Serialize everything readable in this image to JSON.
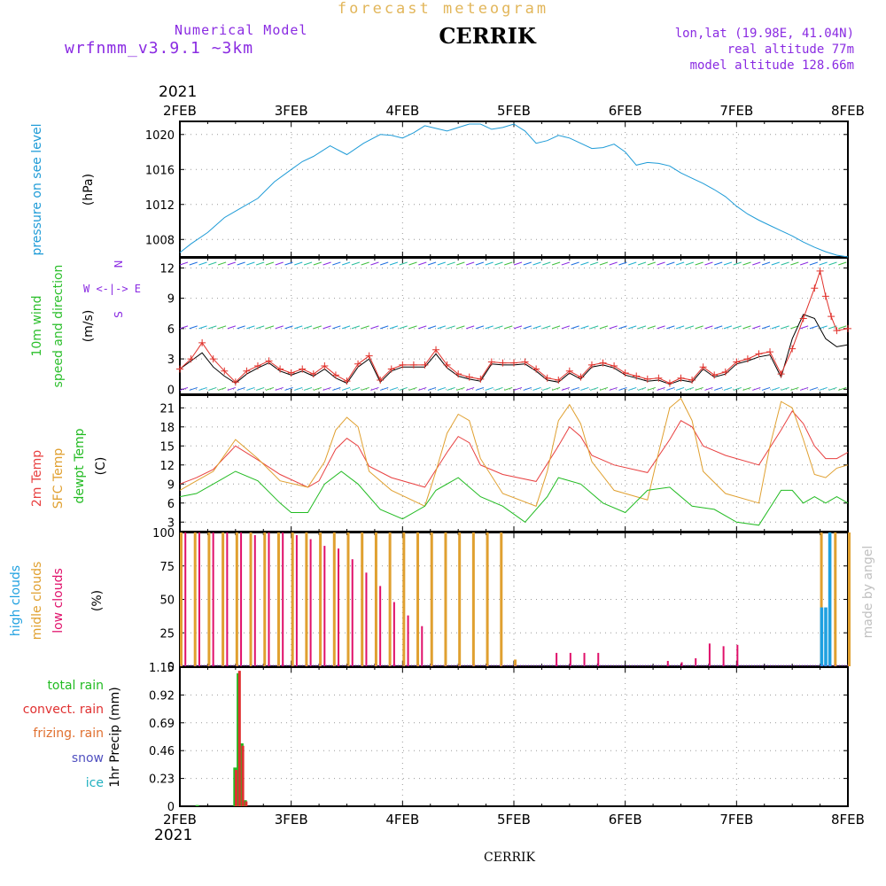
{
  "header": {
    "title": "forecast meteogram",
    "station": "CERRIK",
    "model_line1": "Numerical Model",
    "model_line2": "wrfnmm_v3.9.1   ~3km",
    "lonlat": "lon,lat (19.98E, 41.04N)",
    "real_altitude": "real altitude 77m",
    "model_altitude": "model altitude  128.66m"
  },
  "year_top": "2021",
  "year_bottom": "2021",
  "footer_station": "CERRIK",
  "watermark": "made by angel",
  "time_axis": {
    "top_labels": [
      "2FEB",
      "3FEB",
      "4FEB",
      "5FEB",
      "6FEB",
      "7FEB",
      "8FEB"
    ],
    "bottom_labels": [
      "2FEB",
      "3FEB",
      "4FEB",
      "5FEB",
      "6FEB",
      "7FEB",
      "8FEB"
    ]
  },
  "colors": {
    "pressure": "#1e9bd7",
    "wind_label": "#2cbf2c",
    "wind_speed": "#e0302a",
    "wind_gust": "#000000",
    "temp2m": "#e84040",
    "sfc": "#e0a030",
    "dewpt": "#22bb22",
    "high_clouds": "#1ea0e0",
    "mid_clouds": "#e0a030",
    "low_clouds": "#e0106a",
    "total_rain": "#22bb22",
    "convect_rain": "#e03030",
    "freezing_rain": "#e07030",
    "snow": "#5050c0",
    "ice": "#20b0c0",
    "axis_text": "#000000",
    "grid": "#999999"
  },
  "chart_data": [
    {
      "id": "pressure",
      "type": "line",
      "ylabel": "pressure on see level",
      "unit": "(hPa)",
      "yticks": [
        1008,
        1012,
        1016,
        1020
      ],
      "ylim": [
        1006,
        1021.5
      ],
      "x_days": [
        0,
        0.1,
        0.25,
        0.4,
        0.55,
        0.7,
        0.85,
        1.0,
        1.1,
        1.2,
        1.35,
        1.5,
        1.65,
        1.8,
        1.9,
        2.0,
        2.1,
        2.2,
        2.3,
        2.4,
        2.5,
        2.6,
        2.7,
        2.8,
        2.9,
        3.0,
        3.1,
        3.2,
        3.3,
        3.4,
        3.5,
        3.6,
        3.7,
        3.8,
        3.9,
        4.0,
        4.1,
        4.2,
        4.3,
        4.4,
        4.5,
        4.6,
        4.7,
        4.8,
        4.9,
        5.0,
        5.1,
        5.2,
        5.3,
        5.4,
        5.5,
        5.6,
        5.7,
        5.8,
        5.9,
        6.0
      ],
      "values": [
        1006.5,
        1007.5,
        1008.8,
        1010.5,
        1011.6,
        1012.7,
        1014.6,
        1016.0,
        1016.9,
        1017.5,
        1018.7,
        1017.7,
        1019.0,
        1020.0,
        1019.9,
        1019.6,
        1020.2,
        1021.0,
        1020.7,
        1020.4,
        1020.8,
        1021.2,
        1021.2,
        1020.6,
        1020.8,
        1021.2,
        1020.4,
        1019.0,
        1019.3,
        1019.9,
        1019.6,
        1019.0,
        1018.4,
        1018.5,
        1018.9,
        1018.0,
        1016.5,
        1016.8,
        1016.7,
        1016.4,
        1015.6,
        1015.0,
        1014.4,
        1013.7,
        1012.9,
        1011.8,
        1010.9,
        1010.2,
        1009.6,
        1009.0,
        1008.4,
        1007.7,
        1007.1,
        1006.6,
        1006.2,
        1006.0
      ]
    },
    {
      "id": "wind",
      "type": "line",
      "ylabel_lines": [
        "10m wind",
        "speed and direction"
      ],
      "unit": "(m/s)",
      "direction_legend": [
        "N",
        "W <-|-> E",
        "S"
      ],
      "yticks": [
        0,
        3,
        6,
        9,
        12
      ],
      "ylim": [
        -0.5,
        13
      ],
      "x_days": [
        0,
        0.1,
        0.2,
        0.3,
        0.4,
        0.5,
        0.6,
        0.7,
        0.8,
        0.9,
        1.0,
        1.1,
        1.2,
        1.3,
        1.4,
        1.5,
        1.6,
        1.7,
        1.8,
        1.9,
        2.0,
        2.1,
        2.2,
        2.3,
        2.4,
        2.5,
        2.6,
        2.7,
        2.8,
        2.9,
        3.0,
        3.1,
        3.2,
        3.3,
        3.4,
        3.5,
        3.6,
        3.7,
        3.8,
        3.9,
        4.0,
        4.1,
        4.2,
        4.3,
        4.4,
        4.5,
        4.6,
        4.7,
        4.8,
        4.9,
        5.0,
        5.1,
        5.2,
        5.3,
        5.4,
        5.5,
        5.6,
        5.7,
        5.75,
        5.8,
        5.85,
        5.9,
        6.0
      ],
      "speed": [
        2.0,
        3.0,
        4.6,
        3.0,
        1.8,
        0.7,
        1.8,
        2.3,
        2.8,
        2.0,
        1.6,
        2.0,
        1.5,
        2.3,
        1.4,
        0.8,
        2.5,
        3.3,
        0.9,
        2.0,
        2.4,
        2.4,
        2.4,
        3.9,
        2.4,
        1.5,
        1.2,
        1.0,
        2.7,
        2.6,
        2.6,
        2.7,
        2.0,
        1.1,
        0.9,
        1.8,
        1.2,
        2.4,
        2.6,
        2.3,
        1.6,
        1.3,
        1.0,
        1.1,
        0.6,
        1.1,
        0.9,
        2.2,
        1.4,
        1.7,
        2.7,
        3.0,
        3.5,
        3.7,
        1.5,
        4.0,
        7.0,
        10.0,
        11.7,
        9.2,
        7.2,
        5.8,
        6.0
      ],
      "gust": [
        2.0,
        2.8,
        3.6,
        2.2,
        1.3,
        0.6,
        1.5,
        2.1,
        2.6,
        1.8,
        1.4,
        1.8,
        1.3,
        2.0,
        1.1,
        0.6,
        2.2,
        3.0,
        0.7,
        1.8,
        2.2,
        2.2,
        2.2,
        3.5,
        2.1,
        1.3,
        1.0,
        0.8,
        2.5,
        2.4,
        2.4,
        2.5,
        1.8,
        0.9,
        0.7,
        1.6,
        1.0,
        2.2,
        2.4,
        2.1,
        1.4,
        1.1,
        0.8,
        0.9,
        0.5,
        0.9,
        0.7,
        2.0,
        1.2,
        1.5,
        2.5,
        2.8,
        3.2,
        3.4,
        1.2,
        5.0,
        7.4,
        7.0,
        6.0,
        5.0,
        4.6,
        4.2,
        4.4
      ]
    },
    {
      "id": "temperature",
      "type": "line",
      "ylabel_lines": [
        "2m Temp",
        "SFC Temp",
        "dewpt Temp"
      ],
      "unit": "(C)",
      "yticks": [
        3,
        6,
        9,
        12,
        15,
        18,
        21
      ],
      "ylim": [
        1.5,
        23
      ],
      "series": [
        {
          "name": "2m Temp",
          "x_days": [
            0,
            0.15,
            0.3,
            0.5,
            0.7,
            0.9,
            1.15,
            1.25,
            1.4,
            1.5,
            1.6,
            1.7,
            1.9,
            2.2,
            2.4,
            2.5,
            2.6,
            2.7,
            2.9,
            3.2,
            3.4,
            3.5,
            3.6,
            3.7,
            3.9,
            4.2,
            4.4,
            4.5,
            4.6,
            4.7,
            4.9,
            5.2,
            5.4,
            5.5,
            5.6,
            5.7,
            5.8,
            5.9,
            6.0
          ],
          "values": [
            9.0,
            10.0,
            11.3,
            15.0,
            12.8,
            10.5,
            8.5,
            9.5,
            14.5,
            16.2,
            15.0,
            11.8,
            10.0,
            8.5,
            14.0,
            16.5,
            15.5,
            12.0,
            10.5,
            9.4,
            15.0,
            18.0,
            16.5,
            13.5,
            12.0,
            10.8,
            16.0,
            19.0,
            18.0,
            15.0,
            13.5,
            12.0,
            17.5,
            20.5,
            18.5,
            15.0,
            13.0,
            13.0,
            14.0
          ]
        },
        {
          "name": "SFC Temp",
          "x_days": [
            0,
            0.15,
            0.3,
            0.5,
            0.7,
            0.9,
            1.15,
            1.3,
            1.4,
            1.5,
            1.6,
            1.7,
            1.9,
            2.2,
            2.3,
            2.4,
            2.5,
            2.6,
            2.7,
            2.9,
            3.2,
            3.3,
            3.4,
            3.5,
            3.6,
            3.7,
            3.9,
            4.2,
            4.3,
            4.4,
            4.5,
            4.6,
            4.7,
            4.9,
            5.2,
            5.3,
            5.4,
            5.5,
            5.6,
            5.7,
            5.8,
            5.9,
            6.0
          ],
          "values": [
            8.0,
            9.5,
            11.0,
            16.0,
            13.0,
            9.5,
            8.5,
            12.5,
            17.5,
            19.5,
            18.0,
            11.0,
            8.0,
            5.5,
            11.0,
            17.0,
            20.0,
            19.0,
            13.0,
            7.5,
            5.5,
            11.0,
            19.0,
            21.5,
            18.5,
            12.5,
            8.0,
            6.5,
            14.0,
            21.0,
            22.5,
            19.0,
            11.0,
            7.5,
            6.0,
            15.0,
            22.0,
            21.0,
            16.0,
            10.5,
            10.0,
            11.5,
            12.0
          ]
        },
        {
          "name": "dewpt Temp",
          "x_days": [
            0,
            0.15,
            0.3,
            0.5,
            0.7,
            0.9,
            1.0,
            1.15,
            1.3,
            1.45,
            1.6,
            1.8,
            2.0,
            2.2,
            2.3,
            2.5,
            2.7,
            2.9,
            3.1,
            3.3,
            3.4,
            3.6,
            3.8,
            4.0,
            4.2,
            4.4,
            4.6,
            4.8,
            5.0,
            5.2,
            5.4,
            5.5,
            5.6,
            5.7,
            5.8,
            5.9,
            6.0
          ],
          "values": [
            7.0,
            7.5,
            9.0,
            11.0,
            9.5,
            6.0,
            4.5,
            4.5,
            9.0,
            11.0,
            9.0,
            5.0,
            3.5,
            5.5,
            8.0,
            10.0,
            7.0,
            5.5,
            3.0,
            7.0,
            10.0,
            9.0,
            6.0,
            4.5,
            8.0,
            8.5,
            5.5,
            5.0,
            3.0,
            2.5,
            8.0,
            8.0,
            6.0,
            7.0,
            6.0,
            7.0,
            6.0
          ]
        }
      ]
    },
    {
      "id": "clouds",
      "type": "bar",
      "ylabel_lines": [
        "high  clouds",
        "midle clouds",
        "low   clouds"
      ],
      "unit": "(%)",
      "yticks": [
        0,
        25,
        50,
        75,
        100
      ],
      "ylim": [
        0,
        100
      ],
      "series": [
        {
          "name": "midle clouds",
          "x_hours": [
            0,
            3,
            6,
            9,
            12,
            15,
            18,
            21,
            24,
            27,
            30,
            33,
            36,
            39,
            42,
            45,
            48,
            51,
            54,
            57,
            60,
            63,
            66,
            69,
            72,
            132,
            135,
            138,
            141,
            144
          ],
          "values": [
            100,
            100,
            100,
            100,
            100,
            100,
            100,
            100,
            100,
            100,
            100,
            100,
            100,
            100,
            100,
            100,
            100,
            100,
            100,
            100,
            100,
            100,
            100,
            100,
            5,
            0,
            0,
            100,
            100,
            100
          ]
        },
        {
          "name": "low clouds",
          "x_hours": [
            1,
            4,
            7,
            10,
            13,
            16,
            19,
            22,
            25,
            28,
            31,
            34,
            37,
            40,
            43,
            46,
            49,
            52,
            55,
            58,
            61,
            64,
            67,
            70,
            73,
            81,
            84,
            87,
            90,
            93,
            96,
            99,
            102,
            105,
            108,
            111,
            114,
            117,
            120,
            123,
            126,
            129,
            132,
            135
          ],
          "values": [
            100,
            100,
            100,
            100,
            100,
            98,
            100,
            100,
            98,
            95,
            90,
            88,
            80,
            70,
            60,
            48,
            38,
            30,
            0,
            0,
            0,
            0,
            0,
            0,
            0,
            10,
            10,
            10,
            10,
            0,
            0,
            0,
            0,
            4,
            3,
            6,
            17,
            15,
            16,
            0,
            0,
            0,
            0,
            0
          ]
        },
        {
          "name": "high clouds",
          "x_days_range": [
            5.75,
            5.86
          ],
          "values": [
            44,
            44,
            100
          ]
        }
      ]
    },
    {
      "id": "precip",
      "type": "bar",
      "ylabel": "1hr Precip (mm)",
      "yticks": [
        0,
        0.23,
        0.46,
        0.69,
        0.92,
        1.15
      ],
      "ylim": [
        0,
        1.15
      ],
      "legend": [
        "total     rain",
        "convect. rain",
        "frizing. rain",
        "snow",
        "ice"
      ],
      "series": [
        {
          "name": "total rain",
          "x_days": [
            0.14,
            0.48,
            0.51,
            0.54,
            0.57
          ],
          "values": [
            0.01,
            0.32,
            1.1,
            0.52,
            0.05
          ]
        },
        {
          "name": "convect. rain",
          "x_days": [
            0.47,
            0.5,
            0.53,
            0.56
          ],
          "values": [
            0.3,
            1.12,
            0.5,
            0.04
          ]
        }
      ]
    }
  ]
}
